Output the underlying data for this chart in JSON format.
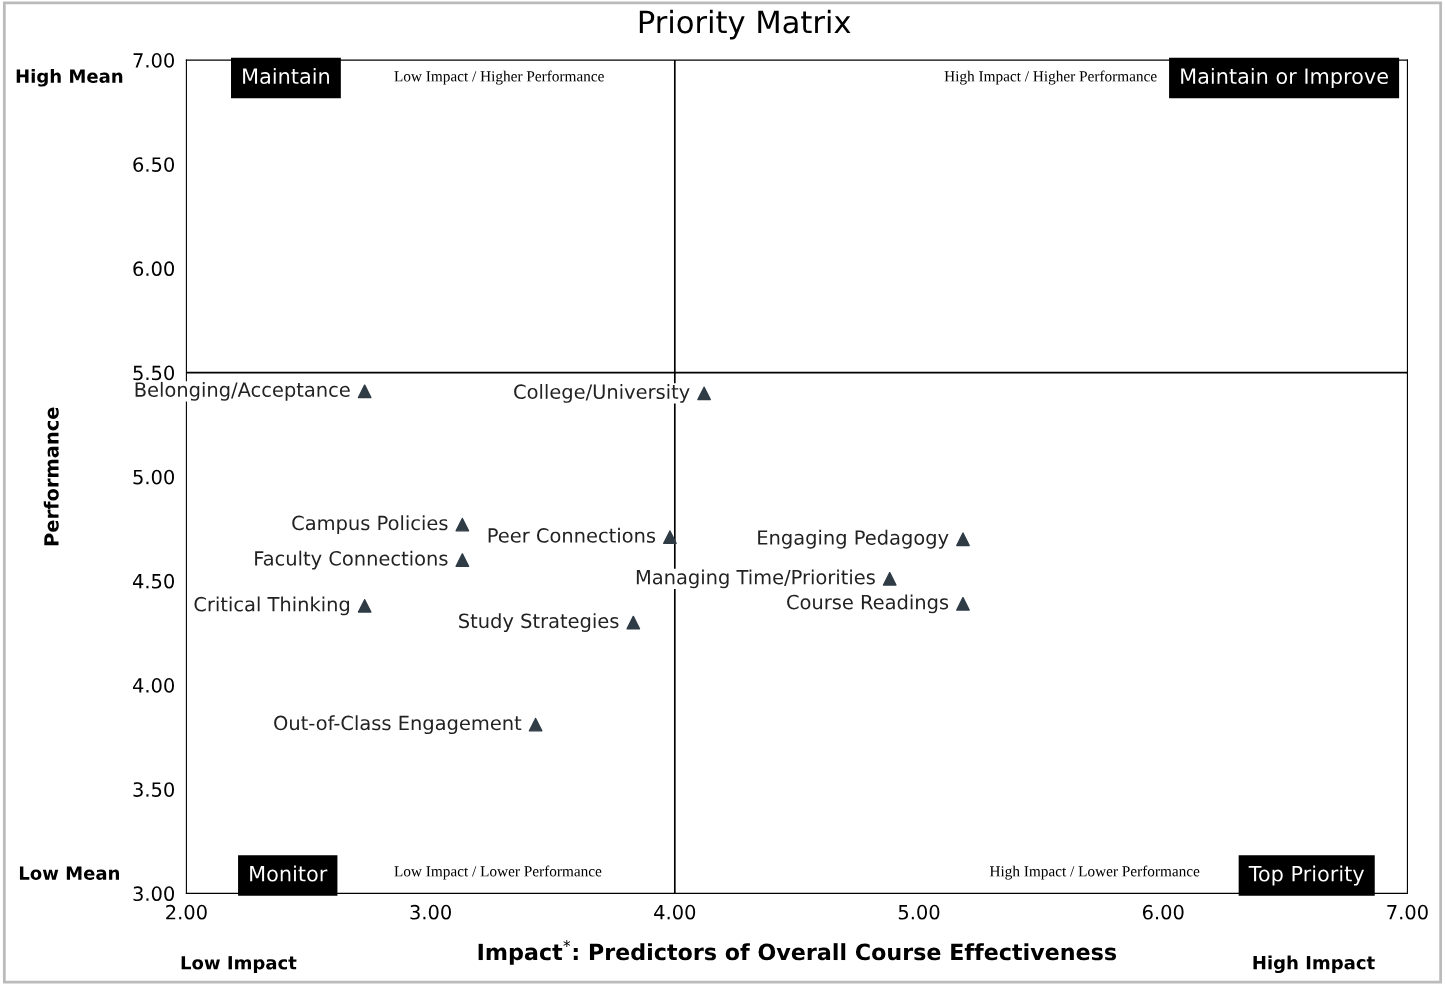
{
  "chart_data": {
    "type": "scatter",
    "title": "Priority Matrix",
    "xlabel": "Impact$^{*}$: Predictors of Overall Course Effectiveness",
    "ylabel": "Performance",
    "series": [
      {
        "color": "#2f3b45",
        "x": [
          2.73,
          4.12,
          3.13,
          3.98,
          3.13,
          5.18,
          4.88,
          5.18,
          2.73,
          3.83,
          3.43
        ],
        "values": [
          5.41,
          5.4,
          4.77,
          4.71,
          4.6,
          4.7,
          4.51,
          4.39,
          4.38,
          4.3,
          3.81
        ]
      }
    ],
    "marker": "triangle",
    "grid": false,
    "legend": false,
    "xlim": [
      2,
      7
    ],
    "ylim": [
      3,
      7
    ],
    "xticks": [
      {
        "value": 2,
        "label": "2.00"
      },
      {
        "value": 3,
        "label": "3.00"
      },
      {
        "value": 4,
        "label": "4.00"
      },
      {
        "value": 5,
        "label": "5.00"
      },
      {
        "value": 6,
        "label": "6.00"
      },
      {
        "value": 7,
        "label": "7.00"
      }
    ],
    "yticks": [
      {
        "value": 3,
        "label": "3.00"
      },
      {
        "value": 3.5,
        "label": "3.50"
      },
      {
        "value": 4,
        "label": "4.00"
      },
      {
        "value": 4.5,
        "label": "4.50"
      },
      {
        "value": 5,
        "label": "5.00"
      },
      {
        "value": 5.5,
        "label": "5.50"
      },
      {
        "value": 6,
        "label": "6.00"
      },
      {
        "value": 6.5,
        "label": "6.50"
      },
      {
        "value": 7,
        "label": "7.00"
      }
    ],
    "ref_lines": [
      {
        "axis": "x",
        "value": 4,
        "color": "#000000"
      },
      {
        "axis": "y",
        "value": 5.5,
        "color": "#000000"
      }
    ],
    "annotations": [
      {
        "text": "Belonging/Acceptance",
        "x": 2.73,
        "y": 5.41
      },
      {
        "text": "College/University",
        "x": 4.12,
        "y": 5.4
      },
      {
        "text": "Campus Policies",
        "x": 3.13,
        "y": 4.77
      },
      {
        "text": "Peer Connections",
        "x": 3.98,
        "y": 4.71
      },
      {
        "text": "Faculty Connections",
        "x": 3.13,
        "y": 4.6
      },
      {
        "text": "Engaging Pedagogy",
        "x": 5.18,
        "y": 4.7
      },
      {
        "text": "Managing Time/Priorities",
        "x": 4.88,
        "y": 4.51
      },
      {
        "text": "Course Readings",
        "x": 5.18,
        "y": 4.39
      },
      {
        "text": "Critical Thinking",
        "x": 2.73,
        "y": 4.38
      },
      {
        "text": "Study Strategies",
        "x": 3.83,
        "y": 4.3
      },
      {
        "text": "Out-of-Class Engagement",
        "x": 3.43,
        "y": 3.81
      },
      "Maintain",
      "Low Impact / Higher Performance",
      "High Impact / Higher Performance",
      "Maintain or Improve",
      "Monitor",
      "Low Impact / Lower Performance",
      "High Impact / Lower Performance",
      "Top Priority",
      "High Mean",
      "Low Mean",
      "Low Impact",
      "High Impact"
    ]
  }
}
